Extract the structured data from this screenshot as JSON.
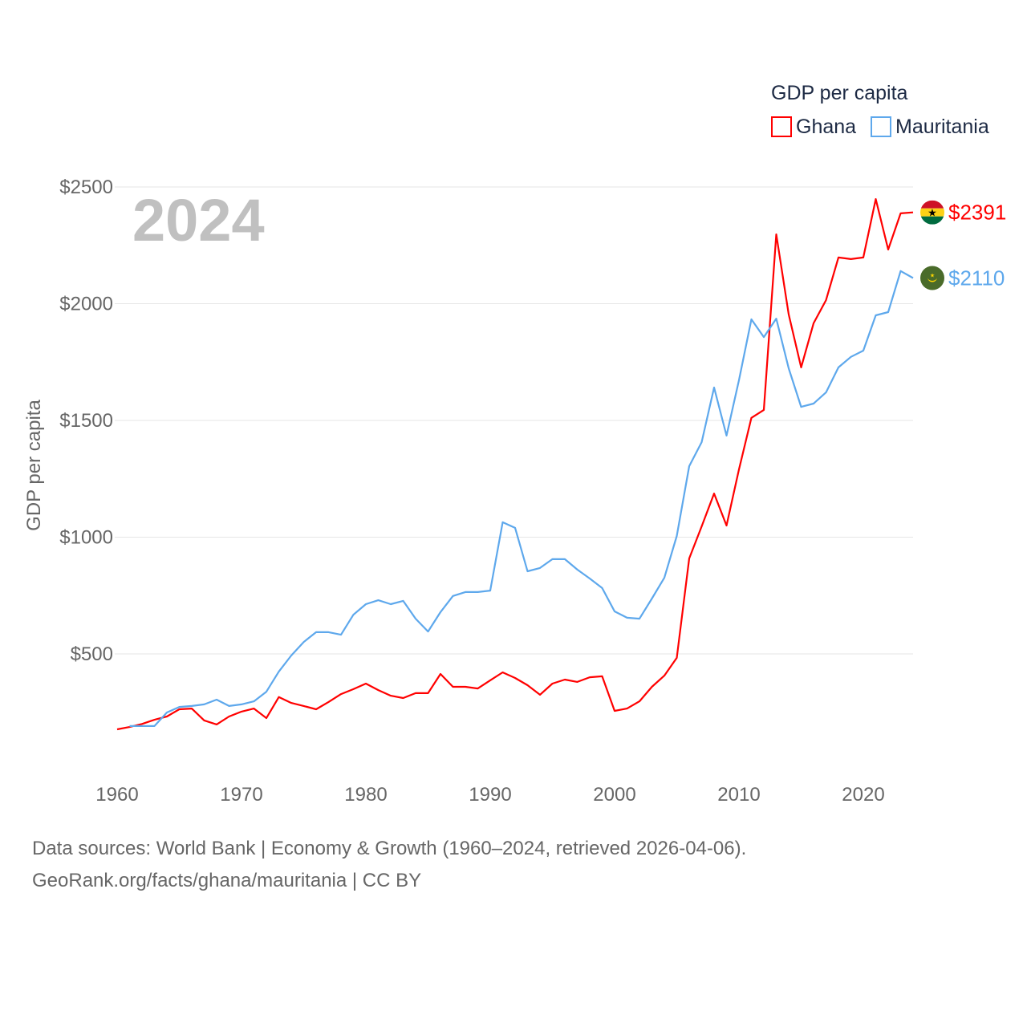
{
  "chart_data": {
    "type": "line",
    "title": "GDP per capita",
    "ylabel": "GDP per capita",
    "xlabel": "",
    "year_label": "2024",
    "xlim": [
      1960,
      2024
    ],
    "ylim": [
      0,
      2500
    ],
    "x_ticks": [
      1960,
      1970,
      1980,
      1990,
      2000,
      2010,
      2020
    ],
    "y_ticks": [
      500,
      1000,
      1500,
      2000,
      2500
    ],
    "y_tick_labels": [
      "$500",
      "$1000",
      "$1500",
      "$2000",
      "$2500"
    ],
    "grid": true,
    "legend_position": "top-right",
    "series": [
      {
        "name": "Ghana",
        "color": "#ff0000",
        "end_label": "$2391",
        "start_year": 1960,
        "values": [
          177,
          187,
          200,
          218,
          232,
          263,
          266,
          215,
          198,
          232,
          253,
          266,
          225,
          315,
          290,
          277,
          263,
          294,
          328,
          349,
          373,
          345,
          321,
          311,
          332,
          332,
          414,
          359,
          359,
          352,
          387,
          421,
          397,
          366,
          325,
          373,
          390,
          380,
          400,
          404,
          256,
          266,
          297,
          359,
          407,
          483,
          909,
          1046,
          1187,
          1050,
          1290,
          1511,
          1545,
          2297,
          1954,
          1727,
          1916,
          2015,
          2198,
          2191,
          2198,
          2448,
          2232,
          2387,
          2391
        ]
      },
      {
        "name": "Mauritania",
        "color": "#5ea8ec",
        "end_label": "$2110",
        "start_year": 1961,
        "values": [
          191,
          191,
          191,
          249,
          273,
          277,
          284,
          304,
          277,
          284,
          297,
          338,
          424,
          493,
          551,
          593,
          593,
          582,
          668,
          713,
          730,
          713,
          727,
          651,
          596,
          679,
          748,
          765,
          765,
          771,
          1064,
          1040,
          854,
          868,
          906,
          906,
          861,
          823,
          782,
          682,
          655,
          651,
          737,
          826,
          1005,
          1304,
          1407,
          1641,
          1435,
          1672,
          1933,
          1857,
          1936,
          1723,
          1558,
          1572,
          1620,
          1727,
          1772,
          1799,
          1950,
          1964,
          2140,
          2110
        ]
      }
    ]
  },
  "footer": {
    "line1": "Data sources: World Bank | Economy & Growth (1960–2024, retrieved 2026-04-06).",
    "line2": "GeoRank.org/facts/ghana/mauritania | CC BY"
  }
}
